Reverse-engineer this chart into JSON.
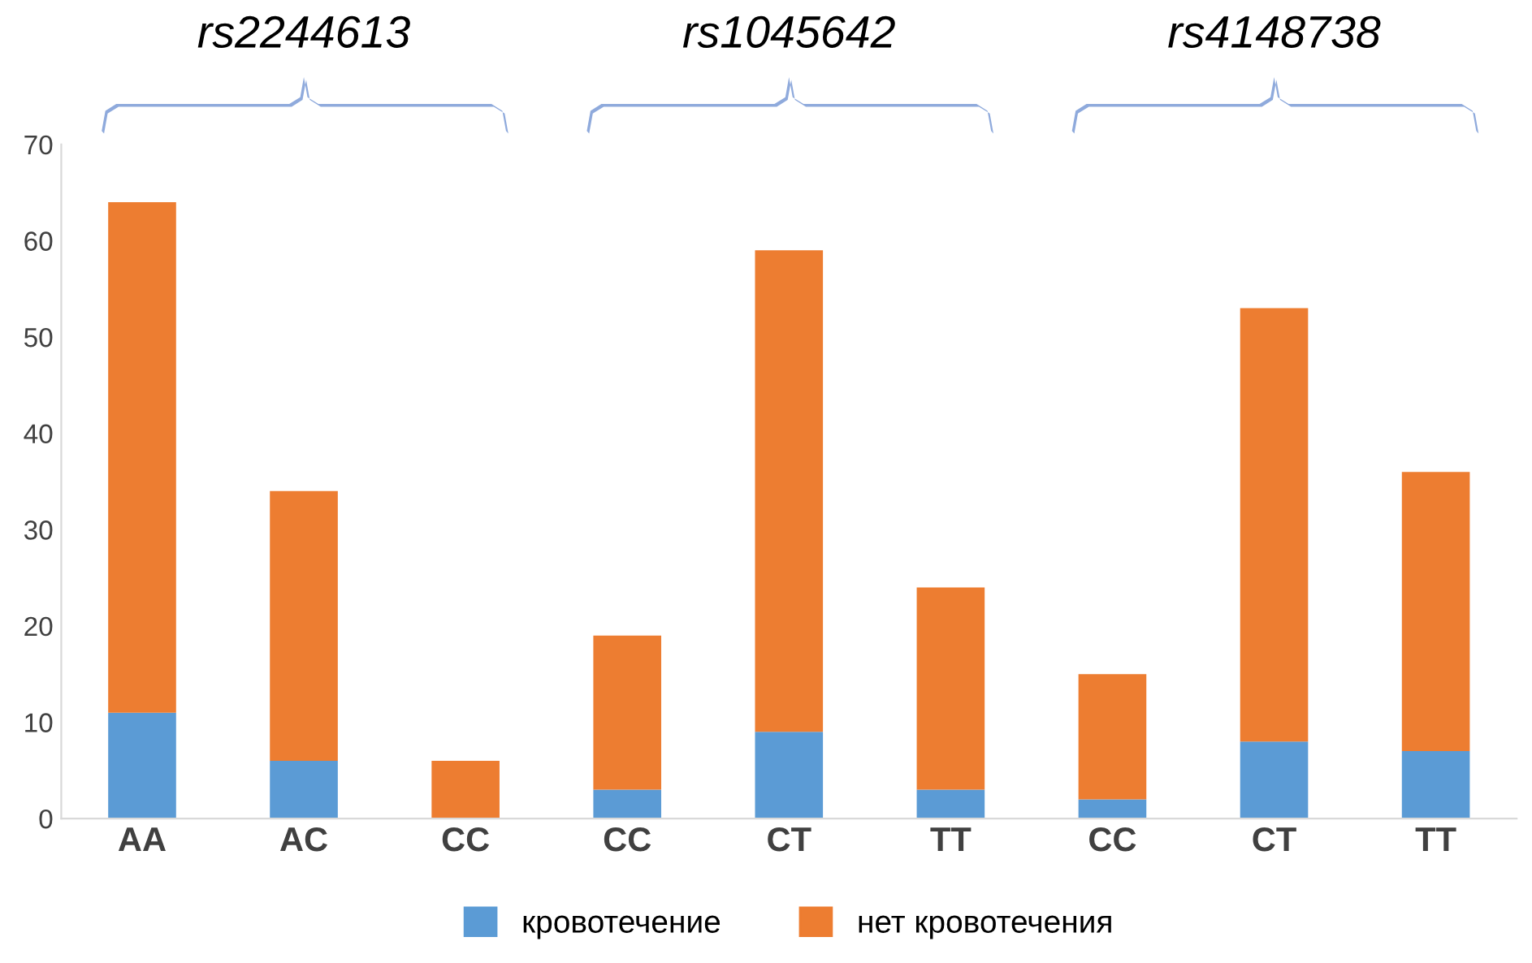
{
  "chart_data": {
    "type": "bar",
    "stacked": true,
    "categories": [
      "AA",
      "AC",
      "CC",
      "CC",
      "CT",
      "TT",
      "CC",
      "CT",
      "TT"
    ],
    "series": [
      {
        "name": "кровотечение",
        "color": "#5b9bd5",
        "values": [
          11,
          6,
          0,
          3,
          9,
          3,
          2,
          8,
          7
        ]
      },
      {
        "name": "нет кровотечения",
        "color": "#ed7d31",
        "values": [
          53,
          28,
          6,
          16,
          50,
          21,
          13,
          45,
          29
        ]
      }
    ],
    "annotations": [
      "rs2244613",
      "rs1045642",
      "rs4148738"
    ],
    "ylim": [
      0,
      70
    ],
    "yticks": [
      0,
      10,
      20,
      30,
      40,
      50,
      60,
      70
    ],
    "grid": false,
    "legend": "bottom"
  }
}
